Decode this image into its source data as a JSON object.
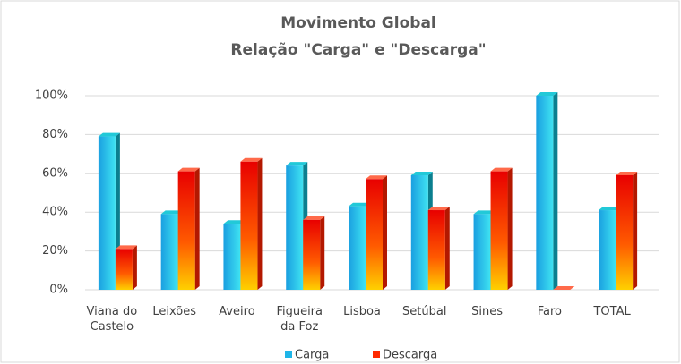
{
  "chart_data": {
    "type": "bar",
    "title": "Movimento Global",
    "subtitle": "Relação \"Carga\" e \"Descarga\"",
    "categories": [
      "Viana do Castelo",
      "Leixões",
      "Aveiro",
      "Figueira da Foz",
      "Lisboa",
      "Setúbal",
      "Sines",
      "Faro",
      "TOTAL"
    ],
    "series": [
      {
        "name": "Carga",
        "color": "#1fb5e8",
        "values": [
          79,
          39,
          34,
          64,
          43,
          59,
          39,
          100,
          41
        ]
      },
      {
        "name": "Descarga",
        "color": "#ff2a00",
        "values": [
          21,
          61,
          66,
          36,
          57,
          41,
          61,
          0,
          59
        ]
      }
    ],
    "ylim": [
      0,
      100
    ],
    "yticks": [
      {
        "value": 0,
        "label": "0%"
      },
      {
        "value": 20,
        "label": "20%"
      },
      {
        "value": 40,
        "label": "40%"
      },
      {
        "value": 60,
        "label": "60%"
      },
      {
        "value": 80,
        "label": "80%"
      },
      {
        "value": 100,
        "label": "100%"
      }
    ],
    "grid": true,
    "legend": "bottom"
  }
}
